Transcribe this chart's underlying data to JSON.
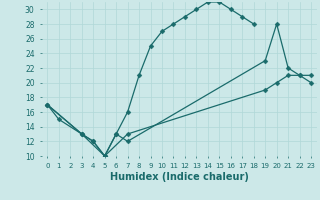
{
  "title": "",
  "xlabel": "Humidex (Indice chaleur)",
  "background_color": "#cce8e8",
  "line_color": "#1a6b6b",
  "xlim": [
    -0.5,
    23.5
  ],
  "ylim": [
    10,
    31
  ],
  "xticks": [
    0,
    1,
    2,
    3,
    4,
    5,
    6,
    7,
    8,
    9,
    10,
    11,
    12,
    13,
    14,
    15,
    16,
    17,
    18,
    19,
    20,
    21,
    22,
    23
  ],
  "yticks": [
    10,
    12,
    14,
    16,
    18,
    20,
    22,
    24,
    26,
    28,
    30
  ],
  "line1_x": [
    0,
    1,
    3,
    4,
    5,
    6,
    7,
    8,
    9,
    10,
    11,
    12,
    13,
    14,
    15,
    16,
    17,
    18
  ],
  "line1_y": [
    17,
    15,
    13,
    12,
    10,
    13,
    16,
    21,
    25,
    27,
    28,
    29,
    30,
    31,
    31,
    30,
    29,
    28
  ],
  "line2_x": [
    0,
    3,
    4,
    5,
    6,
    7,
    19,
    20,
    21,
    22,
    23
  ],
  "line2_y": [
    17,
    13,
    12,
    10,
    13,
    12,
    23,
    28,
    22,
    21,
    21
  ],
  "line3_x": [
    0,
    3,
    5,
    7,
    19,
    20,
    21,
    22,
    23
  ],
  "line3_y": [
    17,
    13,
    10,
    13,
    19,
    20,
    21,
    21,
    20
  ]
}
